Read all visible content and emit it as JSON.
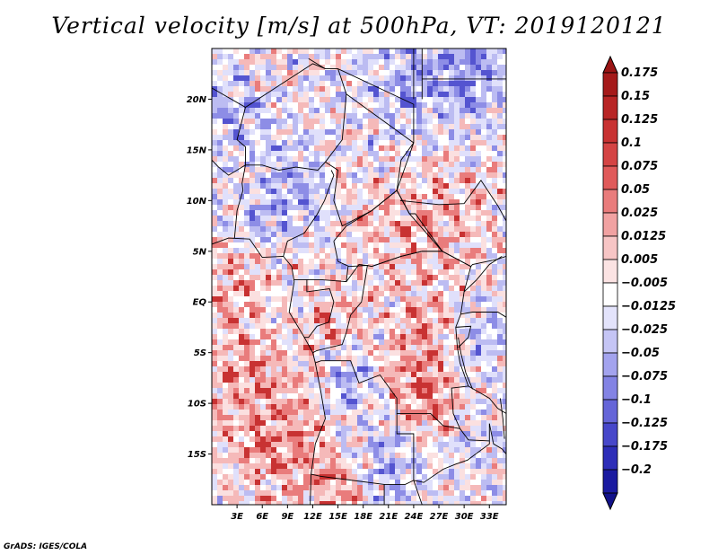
{
  "title": "Vertical velocity [m/s] at 500hPa, VT: 2019120121",
  "credit": "GrADS: IGES/COLA",
  "map": {
    "lon_range": [
      0,
      35
    ],
    "lat_range": [
      -20,
      25
    ],
    "lat_ticks": [
      {
        "value": 20,
        "label": "20N"
      },
      {
        "value": 15,
        "label": "15N"
      },
      {
        "value": 10,
        "label": "10N"
      },
      {
        "value": 5,
        "label": "5N"
      },
      {
        "value": 0,
        "label": "EQ"
      },
      {
        "value": -5,
        "label": "5S"
      },
      {
        "value": -10,
        "label": "10S"
      },
      {
        "value": -15,
        "label": "15S"
      }
    ],
    "lon_ticks": [
      {
        "value": 3,
        "label": "3E"
      },
      {
        "value": 6,
        "label": "6E"
      },
      {
        "value": 9,
        "label": "9E"
      },
      {
        "value": 12,
        "label": "12E"
      },
      {
        "value": 15,
        "label": "15E"
      },
      {
        "value": 18,
        "label": "18E"
      },
      {
        "value": 21,
        "label": "21E"
      },
      {
        "value": 24,
        "label": "24E"
      },
      {
        "value": 27,
        "label": "27E"
      },
      {
        "value": 30,
        "label": "30E"
      },
      {
        "value": 33,
        "label": "33E"
      }
    ]
  },
  "colorbar": {
    "levels": [
      {
        "label": "0.175",
        "color": "#a51a1a"
      },
      {
        "label": "0.15",
        "color": "#b82525"
      },
      {
        "label": "0.125",
        "color": "#c83232"
      },
      {
        "label": "0.1",
        "color": "#d44444"
      },
      {
        "label": "0.075",
        "color": "#e05a5a"
      },
      {
        "label": "0.05",
        "color": "#e97c7c"
      },
      {
        "label": "0.025",
        "color": "#f1a2a2"
      },
      {
        "label": "0.0125",
        "color": "#f7c5c5"
      },
      {
        "label": "0.005",
        "color": "#fbe3e3"
      },
      {
        "label": "−0.005",
        "color": "#ffffff"
      },
      {
        "label": "−0.0125",
        "color": "#e3e3fb"
      },
      {
        "label": "−0.025",
        "color": "#c5c5f5"
      },
      {
        "label": "−0.05",
        "color": "#a3a3ee"
      },
      {
        "label": "−0.075",
        "color": "#8383e4"
      },
      {
        "label": "−0.1",
        "color": "#6565d8"
      },
      {
        "label": "−0.125",
        "color": "#4747ca"
      },
      {
        "label": "−0.175",
        "color": "#2d2db8"
      },
      {
        "label": "−0.2",
        "color": "#1a1aa0"
      }
    ],
    "top_arrow_color": "#9a1515",
    "bottom_arrow_color": "#12128a"
  },
  "palette": {
    "strong_red": "#c83232",
    "red": "#e97c7c",
    "light_red": "#f5b9b9",
    "pale_red": "#fbe0e0",
    "white": "#ffffff",
    "pale_blue": "#e0e0fb",
    "light_blue": "#bcbcf2",
    "blue": "#8d8de6",
    "strong_blue": "#5454d0",
    "border": "#000000"
  }
}
